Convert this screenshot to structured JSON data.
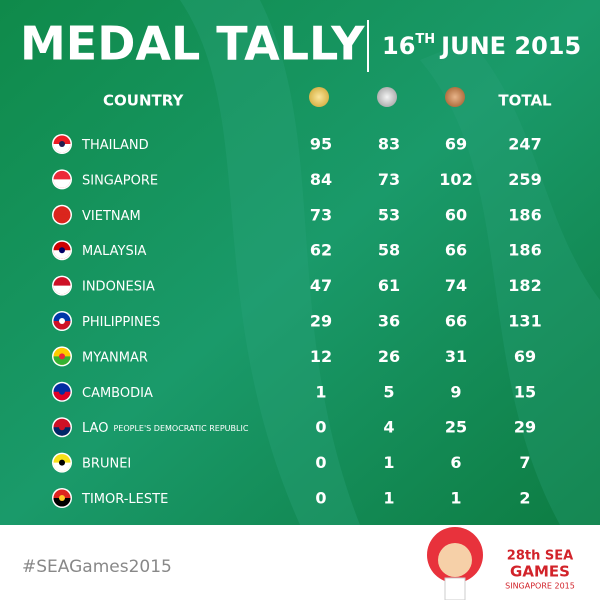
{
  "header": {
    "title": "MEDAL TALLY",
    "date_day": "16",
    "date_suffix": "TH",
    "date_rest": "JUNE 2015"
  },
  "table": {
    "columns": {
      "country": "COUNTRY",
      "total": "TOTAL"
    },
    "rows": [
      {
        "country": "THAILAND",
        "gold": 95,
        "silver": 83,
        "bronze": 69,
        "total": 247
      },
      {
        "country": "SINGAPORE",
        "gold": 84,
        "silver": 73,
        "bronze": 102,
        "total": 259
      },
      {
        "country": "VIETNAM",
        "gold": 73,
        "silver": 53,
        "bronze": 60,
        "total": 186
      },
      {
        "country": "MALAYSIA",
        "gold": 62,
        "silver": 58,
        "bronze": 66,
        "total": 186
      },
      {
        "country": "INDONESIA",
        "gold": 47,
        "silver": 61,
        "bronze": 74,
        "total": 182
      },
      {
        "country": "PHILIPPINES",
        "gold": 29,
        "silver": 36,
        "bronze": 66,
        "total": 131
      },
      {
        "country": "MYANMAR",
        "gold": 12,
        "silver": 26,
        "bronze": 31,
        "total": 69
      },
      {
        "country": "CAMBODIA",
        "gold": 1,
        "silver": 5,
        "bronze": 9,
        "total": 15
      },
      {
        "country": "LAO",
        "country_note": "PEOPLE'S DEMOCRATIC REPUBLIC",
        "gold": 0,
        "silver": 4,
        "bronze": 25,
        "total": 29
      },
      {
        "country": "BRUNEI",
        "gold": 0,
        "silver": 1,
        "bronze": 6,
        "total": 7
      },
      {
        "country": "TIMOR-LESTE",
        "gold": 0,
        "silver": 1,
        "bronze": 1,
        "total": 2
      }
    ]
  },
  "footer": {
    "hashtag": "#SEAGames2015",
    "logo_line1": "28th SEA",
    "logo_line2": "GAMES",
    "logo_line3": "SINGAPORE 2015"
  }
}
